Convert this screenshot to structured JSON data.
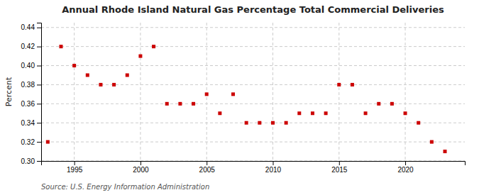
{
  "chart_data": {
    "type": "scatter",
    "title": "Annual Rhode Island Natural Gas Percentage Total Commercial Deliveries",
    "ylabel": "Percent",
    "annotations": [
      "Source: U.S. Energy Information Administration"
    ],
    "x": [
      1993,
      1994,
      1995,
      1996,
      1997,
      1998,
      1999,
      2000,
      2001,
      2002,
      2003,
      2004,
      2005,
      2006,
      2007,
      2008,
      2009,
      2010,
      2011,
      2012,
      2013,
      2014,
      2015,
      2016,
      2017,
      2018,
      2019,
      2020,
      2021,
      2022,
      2023
    ],
    "values": [
      0.32,
      0.42,
      0.4,
      0.39,
      0.38,
      0.38,
      0.39,
      0.41,
      0.42,
      0.36,
      0.36,
      0.36,
      0.37,
      0.35,
      0.37,
      0.34,
      0.34,
      0.34,
      0.34,
      0.35,
      0.35,
      0.35,
      0.38,
      0.38,
      0.35,
      0.36,
      0.36,
      0.35,
      0.34,
      0.32,
      0.31
    ],
    "color": "#cc0000",
    "marker": "square",
    "grid": true,
    "ylim": [
      0.3,
      0.445
    ],
    "yticks": [
      {
        "value": 0.3,
        "label": "0.30"
      },
      0.32,
      0.34,
      0.36,
      0.38,
      {
        "value": 0.4,
        "label": "0.40"
      },
      0.42,
      0.44
    ],
    "xlim": [
      1992.5,
      2024.5
    ],
    "xticks": [
      1995,
      2000,
      2005,
      2010,
      2015,
      2020
    ]
  }
}
